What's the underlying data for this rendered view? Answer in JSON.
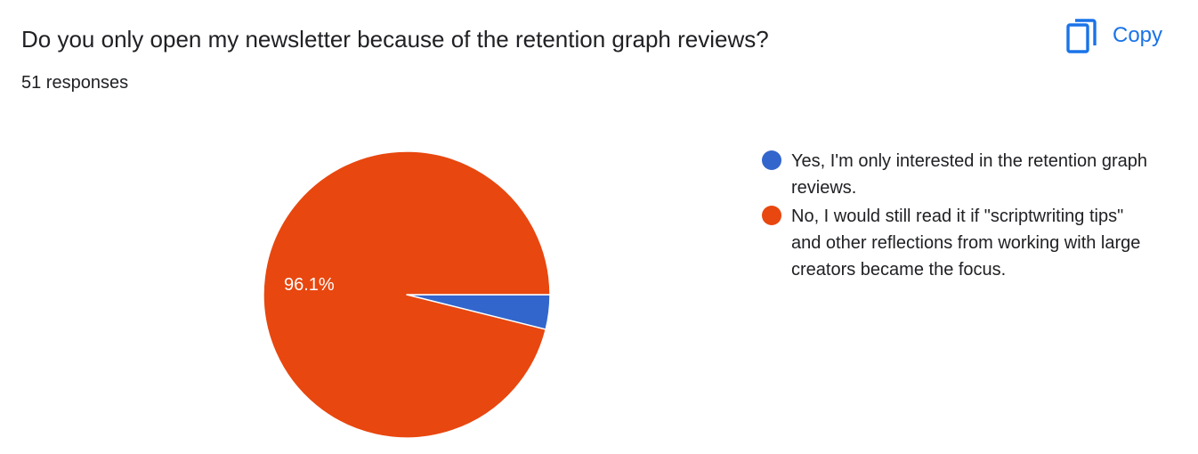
{
  "question": {
    "title": "Do you only open my newsletter because of the retention graph reviews?",
    "responses": "51 responses"
  },
  "toolbar": {
    "copy_label": "Copy",
    "copy_icon": "copy-icon"
  },
  "colors": {
    "accent": "#1a73e8",
    "yes": "#3366cc",
    "no": "#e8470f"
  },
  "chart_data": {
    "type": "pie",
    "categories": [
      "Yes, I'm only interested in the retention graph reviews.",
      "No, I would still read it if \"scriptwriting tips\" and other reflections from working with large creators became the focus."
    ],
    "values": [
      3.9,
      96.1
    ],
    "data_labels": [
      "",
      "96.1%"
    ],
    "colors": [
      "#3366cc",
      "#e8470f"
    ],
    "legend": "right"
  }
}
